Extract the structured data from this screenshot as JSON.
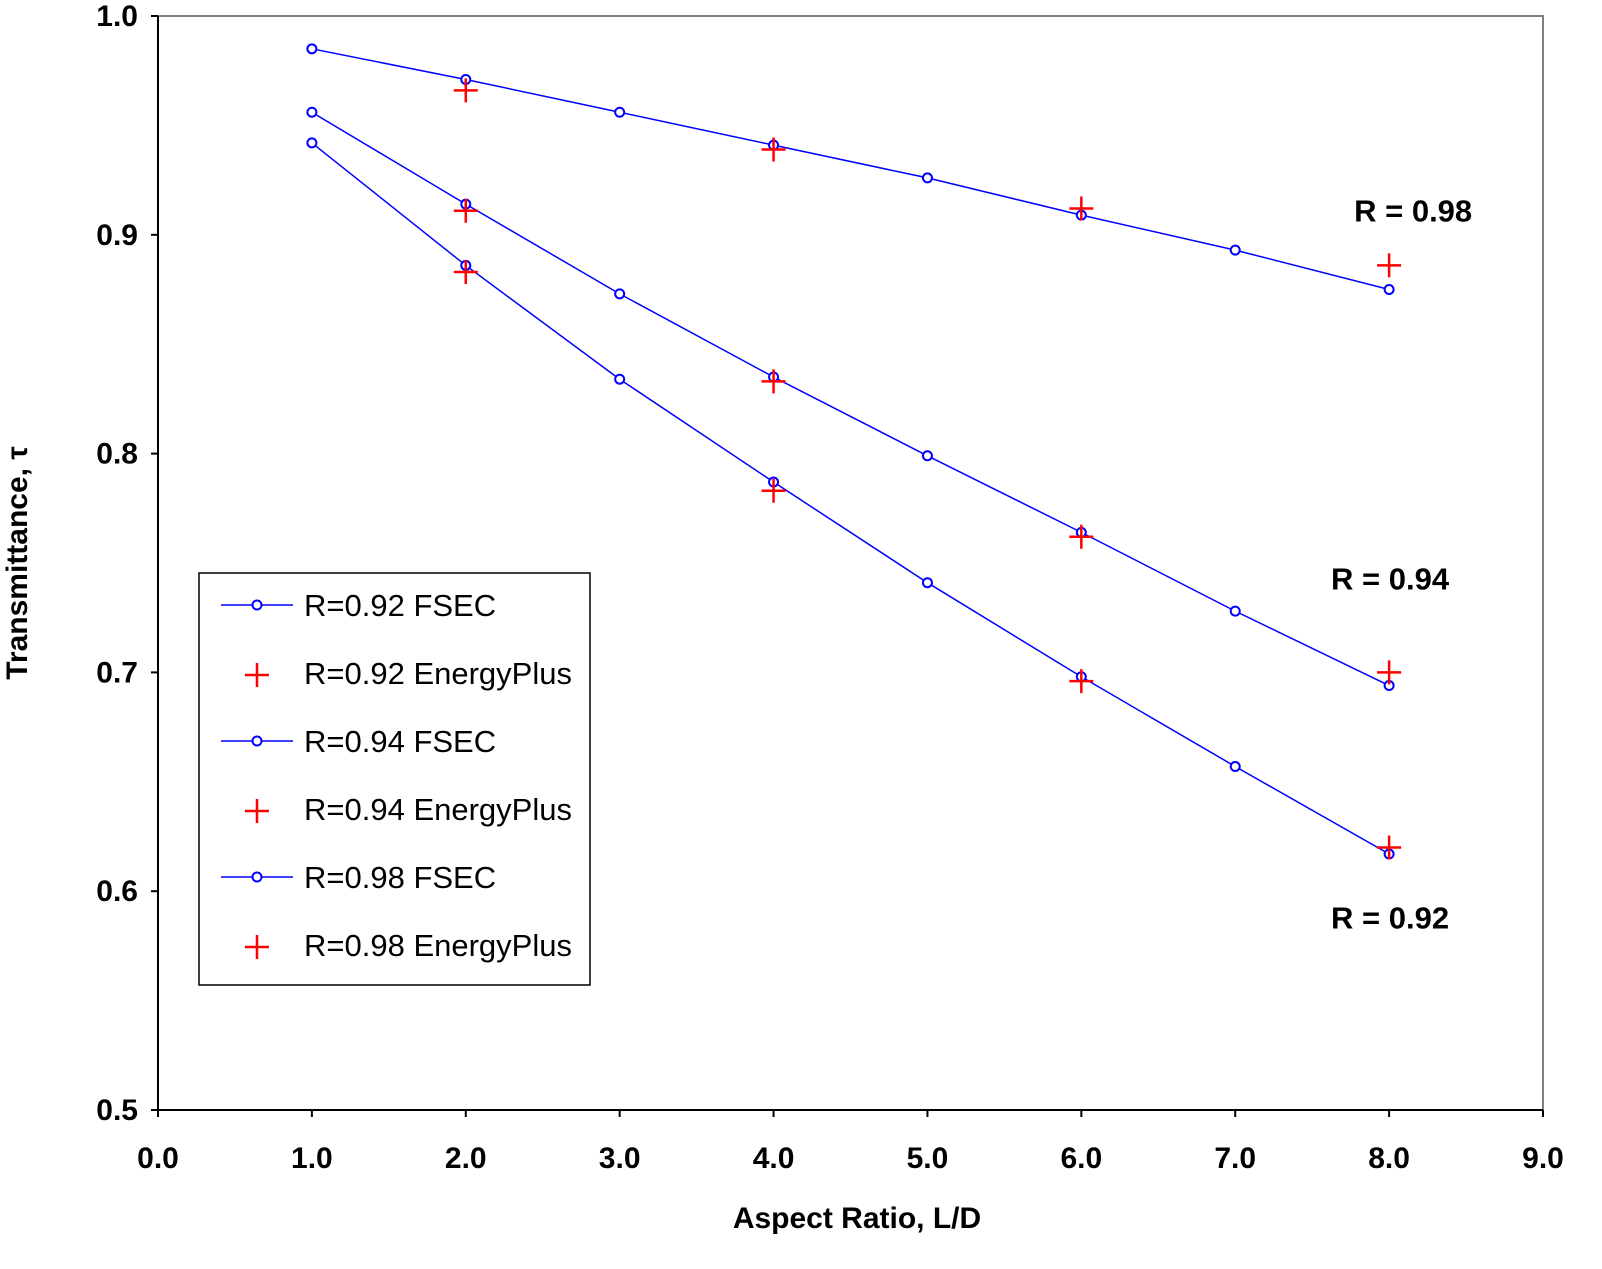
{
  "chart_data": {
    "type": "scatter",
    "title": "",
    "xlabel": "Aspect Ratio, L/D",
    "ylabel": "Transmittance, τ",
    "xlim": [
      0,
      9
    ],
    "ylim": [
      0.5,
      1.0
    ],
    "xticks": [
      "0.0",
      "1.0",
      "2.0",
      "3.0",
      "4.0",
      "5.0",
      "6.0",
      "7.0",
      "8.0",
      "9.0"
    ],
    "yticks": [
      "0.5",
      "0.6",
      "0.7",
      "0.8",
      "0.9",
      "1.0"
    ],
    "grid": false,
    "legend_placement": "lower-left",
    "colors": {
      "fsec": "#0000ff",
      "energyplus": "#ff0000"
    },
    "series": [
      {
        "name": "R=0.92 FSEC",
        "marker": "circle-line",
        "x": [
          1,
          2,
          3,
          4,
          5,
          6,
          7,
          8
        ],
        "y": [
          0.942,
          0.886,
          0.834,
          0.787,
          0.741,
          0.698,
          0.657,
          0.617
        ]
      },
      {
        "name": "R=0.92 EnergyPlus",
        "marker": "plus",
        "x": [
          2,
          4,
          6,
          8
        ],
        "y": [
          0.883,
          0.783,
          0.696,
          0.62
        ]
      },
      {
        "name": "R=0.94 FSEC",
        "marker": "circle-line",
        "x": [
          1,
          2,
          3,
          4,
          5,
          6,
          7,
          8
        ],
        "y": [
          0.956,
          0.914,
          0.873,
          0.835,
          0.799,
          0.764,
          0.728,
          0.694
        ]
      },
      {
        "name": "R=0.94 EnergyPlus",
        "marker": "plus",
        "x": [
          2,
          4,
          6,
          8
        ],
        "y": [
          0.911,
          0.833,
          0.762,
          0.7
        ]
      },
      {
        "name": "R=0.98 FSEC",
        "marker": "circle-line",
        "x": [
          1,
          2,
          3,
          4,
          5,
          6,
          7,
          8
        ],
        "y": [
          0.985,
          0.971,
          0.956,
          0.941,
          0.926,
          0.909,
          0.893,
          0.875
        ]
      },
      {
        "name": "R=0.98 EnergyPlus",
        "marker": "plus",
        "x": [
          2,
          4,
          6,
          8
        ],
        "y": [
          0.966,
          0.939,
          0.912,
          0.886
        ]
      }
    ],
    "annotations": [
      {
        "text": "R = 0.98",
        "x": 8.0,
        "y": 0.911
      },
      {
        "text": "R = 0.94",
        "x": 7.85,
        "y": 0.743
      },
      {
        "text": "R = 0.92",
        "x": 7.85,
        "y": 0.588
      }
    ]
  }
}
